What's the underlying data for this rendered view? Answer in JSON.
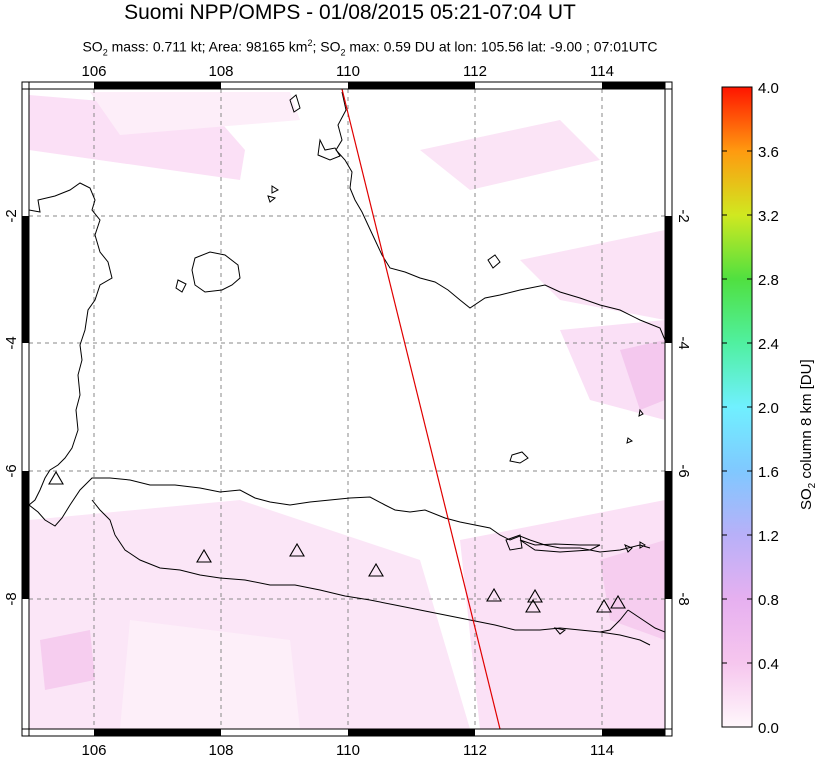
{
  "title": "Suomi NPP/OMPS - 01/08/2015 05:21-07:04 UT",
  "subtitle": {
    "so2_prefix": "SO",
    "so2_sub": "2",
    "mass_text": " mass: 0.711 kt; Area: 98165 km",
    "area_sup": "2",
    "sep": "; SO",
    "so2_sub_2": "2",
    "max_text": " max: 0.59 DU at lon: 105.56 lat: -9.00 ; 07:01UTC"
  },
  "map": {
    "lon_ticks": [
      "106",
      "108",
      "110",
      "112",
      "114"
    ],
    "lat_ticks": [
      "-2",
      "-4",
      "-6",
      "-8"
    ],
    "coastline_color": "#000000",
    "orbit_line_color": "#e00000",
    "so2_shading_color": "#f8d8f0",
    "volcano_marker": "triangle-icon"
  },
  "colorbar": {
    "title_prefix": "SO",
    "title_sub": "2",
    "title_suffix": " column 8 km [DU]",
    "labels": [
      "4.0",
      "3.6",
      "3.2",
      "2.8",
      "2.4",
      "2.0",
      "1.6",
      "1.2",
      "0.8",
      "0.4",
      "0.0"
    ],
    "min": 0.0,
    "max": 4.0,
    "colors": [
      "#fff7fb",
      "#f6c6ee",
      "#d8a8f0",
      "#b0b8f8",
      "#70e8ff",
      "#50f0c0",
      "#40e060",
      "#a0e020",
      "#f0e020",
      "#ff9010",
      "#ff2000"
    ]
  }
}
